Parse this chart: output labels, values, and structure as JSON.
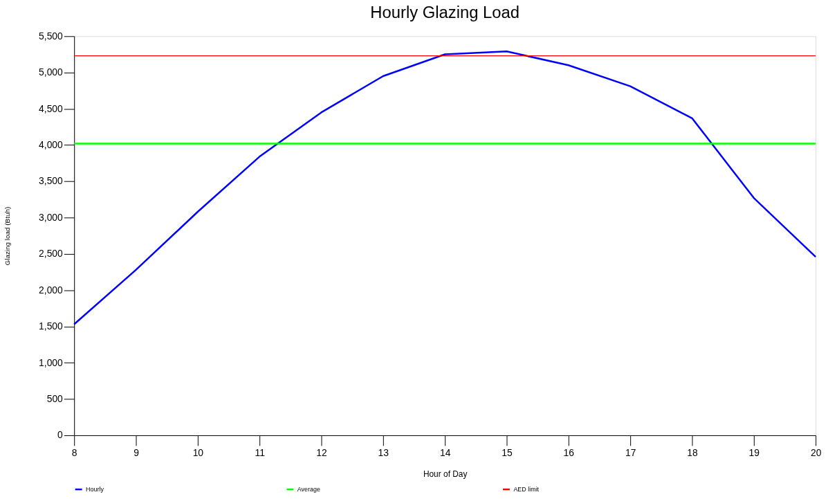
{
  "chart_data": {
    "type": "line",
    "title": "Hourly Glazing Load",
    "xlabel": "Hour of Day",
    "ylabel": "Glazing load (Btuh)",
    "x": [
      8,
      9,
      10,
      11,
      12,
      13,
      14,
      15,
      16,
      17,
      18,
      19,
      20
    ],
    "series": [
      {
        "name": "Hourly",
        "color": "#0000ff",
        "values": [
          1530,
          2280,
          3080,
          3840,
          4450,
          4950,
          5250,
          5290,
          5100,
          4810,
          4370,
          3270,
          2460
        ]
      }
    ],
    "ref_lines": [
      {
        "axis": "y",
        "value": 4020,
        "label": "Average",
        "color": "#00ff00"
      },
      {
        "axis": "y",
        "value": 5230,
        "label": "AED limit",
        "color": "#ff0000"
      }
    ],
    "xlim": [
      8,
      20
    ],
    "xticks": [
      8,
      9,
      10,
      11,
      12,
      13,
      14,
      15,
      16,
      17,
      18,
      19,
      20
    ],
    "ylim": [
      0,
      5500
    ],
    "yticks": [
      0,
      500,
      {
        "value": 1000,
        "label": "1,000"
      },
      {
        "value": 1500,
        "label": "1,500"
      },
      {
        "value": 2000,
        "label": "2,000"
      },
      {
        "value": 2500,
        "label": "2,500"
      },
      {
        "value": 3000,
        "label": "3,000"
      },
      {
        "value": 3500,
        "label": "3,500"
      },
      {
        "value": 4000,
        "label": "4,000"
      },
      {
        "value": 4500,
        "label": "4,500"
      },
      {
        "value": 5000,
        "label": "5,000"
      },
      {
        "value": 5500,
        "label": "5,500"
      }
    ],
    "grid": false,
    "legend": "bottom",
    "marker": "none",
    "line_style": "solid"
  }
}
